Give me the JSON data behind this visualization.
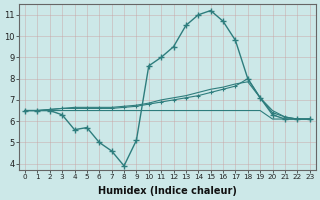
{
  "title": "",
  "xlabel": "Humidex (Indice chaleur)",
  "ylabel": "",
  "background_color": "#cce8e8",
  "grid_color": "#d4eded",
  "line_color": "#2e7d7d",
  "x_values": [
    0,
    1,
    2,
    3,
    4,
    5,
    6,
    7,
    8,
    9,
    10,
    11,
    12,
    13,
    14,
    15,
    16,
    17,
    18,
    19,
    20,
    21,
    22,
    23
  ],
  "line1_y": [
    6.5,
    6.5,
    6.5,
    6.3,
    5.6,
    5.7,
    5.0,
    4.6,
    3.9,
    5.1,
    8.6,
    9.0,
    9.5,
    10.5,
    11.0,
    11.2,
    10.7,
    9.8,
    8.0,
    7.1,
    6.3,
    6.1,
    6.1,
    6.1
  ],
  "line2_y": [
    6.5,
    6.5,
    6.5,
    6.5,
    6.5,
    6.5,
    6.5,
    6.5,
    6.5,
    6.5,
    6.5,
    6.5,
    6.5,
    6.5,
    6.5,
    6.5,
    6.5,
    6.5,
    6.5,
    6.5,
    6.1,
    6.1,
    6.1,
    6.1
  ],
  "line3_y": [
    6.5,
    6.5,
    6.55,
    6.6,
    6.6,
    6.6,
    6.6,
    6.6,
    6.65,
    6.7,
    6.8,
    6.9,
    7.0,
    7.1,
    7.2,
    7.35,
    7.5,
    7.65,
    8.0,
    7.1,
    6.4,
    6.2,
    6.1,
    6.1
  ],
  "line4_y": [
    6.5,
    6.5,
    6.55,
    6.6,
    6.65,
    6.65,
    6.65,
    6.65,
    6.7,
    6.75,
    6.85,
    7.0,
    7.1,
    7.2,
    7.35,
    7.5,
    7.6,
    7.75,
    7.85,
    7.1,
    6.5,
    6.2,
    6.1,
    6.1
  ],
  "xlim": [
    -0.5,
    23.5
  ],
  "ylim": [
    3.7,
    11.5
  ],
  "yticks": [
    4,
    5,
    6,
    7,
    8,
    9,
    10,
    11
  ],
  "xticks": [
    0,
    1,
    2,
    3,
    4,
    5,
    6,
    7,
    8,
    9,
    10,
    11,
    12,
    13,
    14,
    15,
    16,
    17,
    18,
    19,
    20,
    21,
    22,
    23
  ]
}
